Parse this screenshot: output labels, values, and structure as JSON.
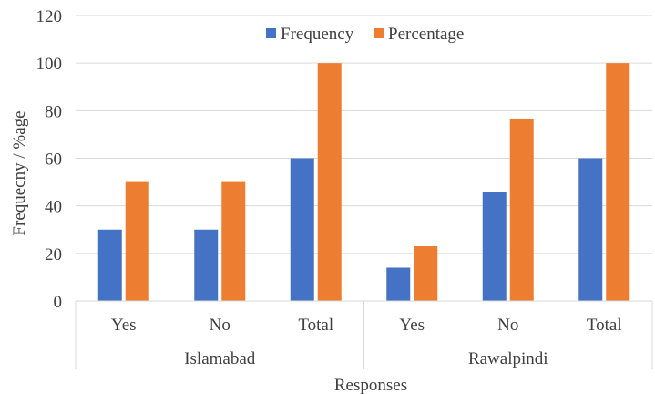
{
  "chart_data": {
    "type": "bar",
    "xlabel": "Responses",
    "ylabel": "Frequecny / %age",
    "ylim": [
      0,
      120
    ],
    "yticks": [
      "0",
      "20",
      "40",
      "60",
      "80",
      "100",
      "120"
    ],
    "grid": true,
    "legend_position": "top",
    "groups": [
      {
        "label": "Islamabad",
        "categories": [
          "Yes",
          "No",
          "Total"
        ]
      },
      {
        "label": "Rawalpindi",
        "categories": [
          "Yes",
          "No",
          "Total"
        ]
      }
    ],
    "categories": [
      "Yes",
      "No",
      "Total",
      "Yes",
      "No",
      "Total"
    ],
    "series": [
      {
        "name": "Frequency",
        "color": "#4472C4",
        "values": [
          30,
          30,
          60,
          14,
          46,
          60
        ]
      },
      {
        "name": "Percentage",
        "color": "#ED7D31",
        "values": [
          50,
          50,
          100,
          23,
          76.7,
          100
        ]
      }
    ]
  }
}
